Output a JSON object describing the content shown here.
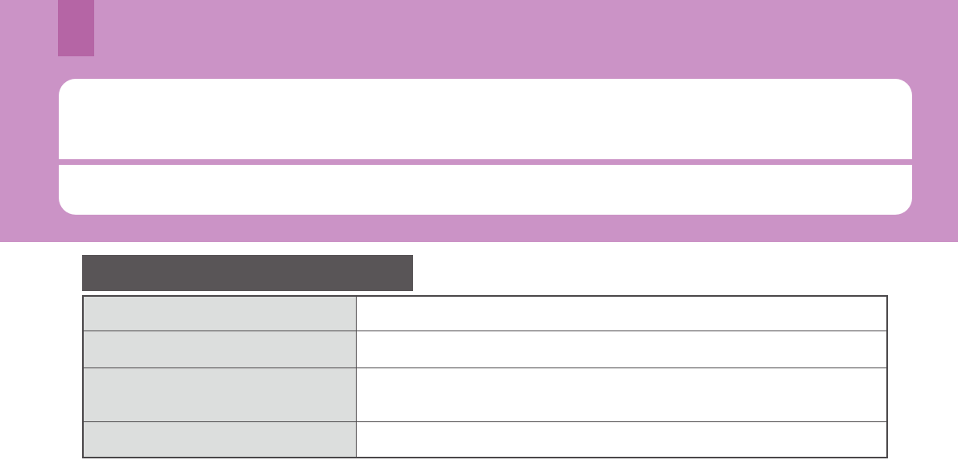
{
  "page": {
    "background_color": "#ffffff"
  },
  "header_band": {
    "band_color": "#cb93c6",
    "tab_color": "#b565a5"
  },
  "callout": {
    "background_color": "#ffffff",
    "divider_color": "#cb93c6",
    "top_section_text": "",
    "bottom_section_text": ""
  },
  "section_header": {
    "bar_color": "#595557",
    "title": ""
  },
  "table": {
    "border_color": "#4a4749",
    "label_column_color": "#dcdedd",
    "value_column_color": "#ffffff",
    "rows": [
      {
        "label": "",
        "value": ""
      },
      {
        "label": "",
        "value": ""
      },
      {
        "label": "",
        "value": ""
      },
      {
        "label": "",
        "value": ""
      }
    ]
  }
}
